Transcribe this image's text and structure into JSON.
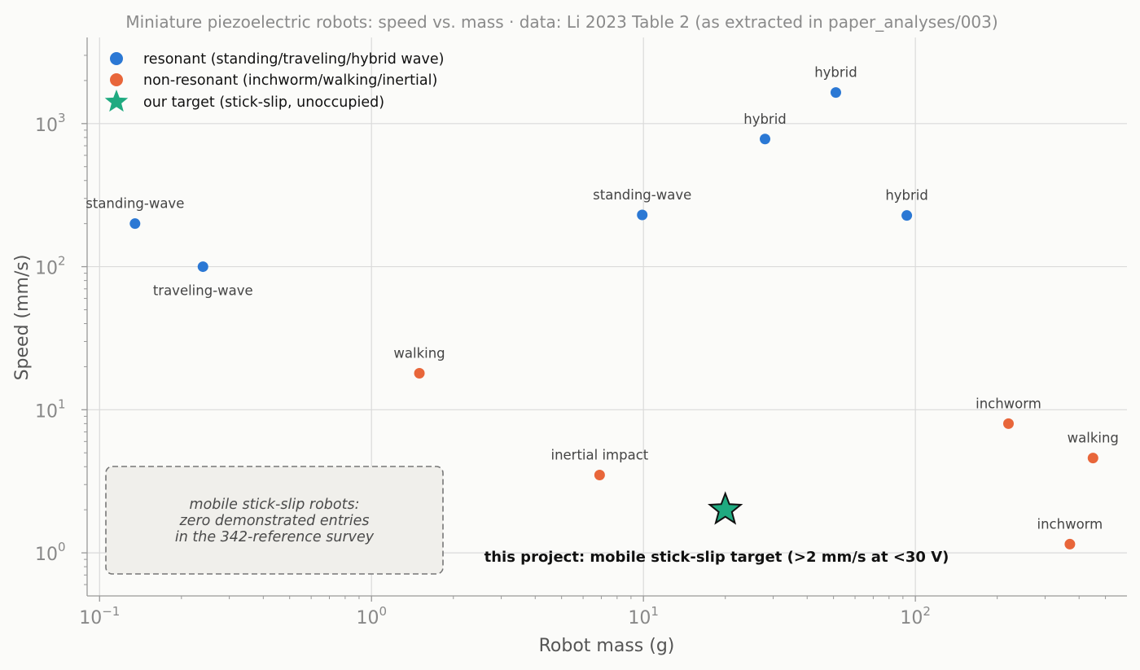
{
  "chart_data": {
    "type": "scatter",
    "title": "Miniature piezoelectric robots: speed vs. mass  ·  data: Li 2023 Table 2 (as extracted in paper_analyses/003)",
    "xlabel": "Robot mass (g)",
    "ylabel": "Speed (mm/s)",
    "xscale": "log",
    "yscale": "log",
    "xlim": [
      0.09,
      600
    ],
    "ylim": [
      0.5,
      4000
    ],
    "grid": true,
    "legend_position": "top-left",
    "x_ticks": [
      {
        "value": 0.1,
        "base": "10",
        "exp": "−1"
      },
      {
        "value": 1,
        "base": "10",
        "exp": "0"
      },
      {
        "value": 10,
        "base": "10",
        "exp": "1"
      },
      {
        "value": 100,
        "base": "10",
        "exp": "2"
      }
    ],
    "y_ticks": [
      {
        "value": 1,
        "base": "10",
        "exp": "0"
      },
      {
        "value": 10,
        "base": "10",
        "exp": "1"
      },
      {
        "value": 100,
        "base": "10",
        "exp": "2"
      },
      {
        "value": 1000,
        "base": "10",
        "exp": "3"
      }
    ],
    "series": [
      {
        "name": "resonant (standing/traveling/hybrid wave)",
        "color": "#2b78d4",
        "marker": "circle",
        "points": [
          {
            "x": 0.135,
            "y": 200,
            "label": "standing-wave",
            "label_pos": "above"
          },
          {
            "x": 0.24,
            "y": 100,
            "label": "traveling-wave",
            "label_pos": "below"
          },
          {
            "x": 9.9,
            "y": 230,
            "label": "standing-wave",
            "label_pos": "above"
          },
          {
            "x": 28,
            "y": 780,
            "label": "hybrid",
            "label_pos": "above"
          },
          {
            "x": 51,
            "y": 1650,
            "label": "hybrid",
            "label_pos": "above"
          },
          {
            "x": 93,
            "y": 228,
            "label": "hybrid",
            "label_pos": "above"
          }
        ]
      },
      {
        "name": "non-resonant (inchworm/walking/inertial)",
        "color": "#e8663a",
        "marker": "circle",
        "points": [
          {
            "x": 1.5,
            "y": 18,
            "label": "walking",
            "label_pos": "above"
          },
          {
            "x": 6.9,
            "y": 3.5,
            "label": "inertial impact",
            "label_pos": "above"
          },
          {
            "x": 220,
            "y": 8,
            "label": "inchworm",
            "label_pos": "above"
          },
          {
            "x": 450,
            "y": 4.6,
            "label": "walking",
            "label_pos": "above"
          },
          {
            "x": 370,
            "y": 1.15,
            "label": "inchworm",
            "label_pos": "above"
          }
        ]
      },
      {
        "name": "our target (stick-slip, unoccupied)",
        "color": "#1faa80",
        "marker": "star",
        "points": [
          {
            "x": 20,
            "y": 2
          }
        ]
      }
    ],
    "annotations": {
      "target_text": "this project: mobile stick-slip target (>2 mm/s at <30 V)",
      "empty_box_lines": [
        "mobile stick-slip robots:",
        "zero demonstrated entries",
        "in the 342-reference survey"
      ]
    }
  }
}
